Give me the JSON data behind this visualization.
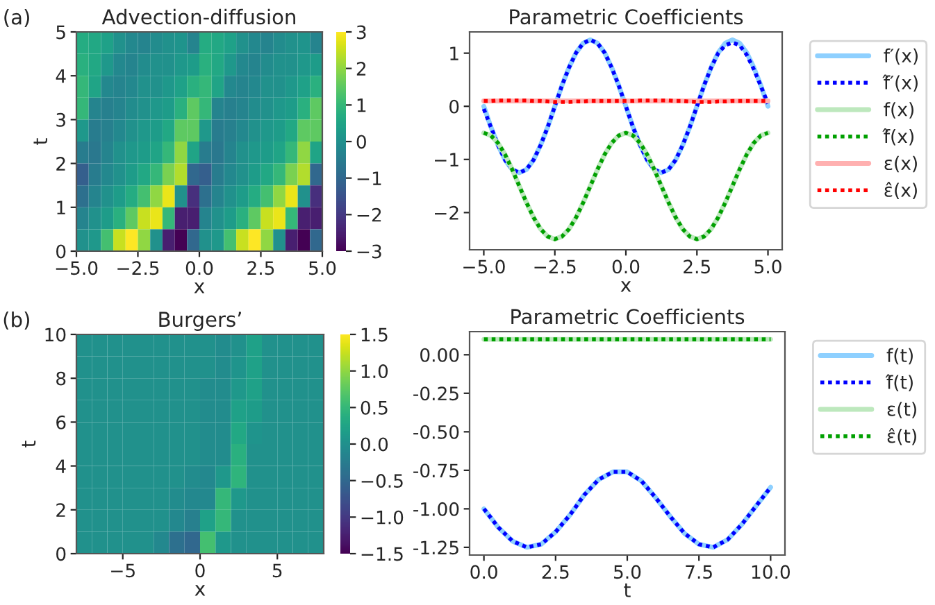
{
  "chart_data": [
    {
      "type": "heatmap",
      "title": "Advection-diffusion",
      "xlabel": "x",
      "ylabel": "t",
      "annotations": [
        "(a)"
      ],
      "xlim": [
        -5,
        5
      ],
      "ylim": [
        0,
        5
      ],
      "xticks": [
        {
          "value": -5,
          "label": "−5.0"
        },
        {
          "value": -2.5,
          "label": "−2.5"
        },
        {
          "value": 0,
          "label": "0.0"
        },
        {
          "value": 2.5,
          "label": "2.5"
        },
        {
          "value": 5,
          "label": "5.0"
        }
      ],
      "yticks": [
        0,
        1,
        2,
        3,
        4,
        5
      ],
      "clim": [
        -3,
        3
      ],
      "cticks": [
        {
          "value": -3,
          "label": "−3"
        },
        {
          "value": -2,
          "label": "−2"
        },
        {
          "value": -1,
          "label": "−1"
        },
        0,
        1,
        2,
        3
      ],
      "cells": [
        [
          0.7,
          0.6,
          0.4,
          0,
          -0.2,
          -0.3,
          -0.1,
          0,
          0.1,
          -0.3,
          0.7,
          0.6,
          0.4,
          0,
          -0.2,
          -0.3,
          -0.1,
          0,
          0.1,
          -0.3
        ],
        [
          0.8,
          0.6,
          0.2,
          -0.2,
          -0.3,
          -0.1,
          0,
          0,
          0.2,
          0.3,
          0.8,
          0.6,
          0.2,
          -0.2,
          -0.3,
          -0.1,
          0,
          0,
          0.2,
          0.3
        ],
        [
          1,
          0.5,
          -0.2,
          -0.3,
          -0.2,
          0,
          0,
          0.2,
          0.4,
          0.8,
          1,
          0.5,
          -0.2,
          -0.3,
          -0.2,
          0,
          0,
          0.2,
          0.4,
          0.8
        ],
        [
          1,
          -0.3,
          -0.4,
          -0.3,
          -0.1,
          0,
          0.2,
          0.3,
          0.8,
          1.5,
          1,
          -0.3,
          -0.4,
          -0.3,
          -0.1,
          0,
          0.2,
          0.3,
          0.8,
          1.5
        ],
        [
          0.2,
          -0.5,
          -0.4,
          -0.2,
          0,
          0.2,
          0.3,
          0.6,
          1.5,
          1.5,
          0.2,
          -0.5,
          -0.4,
          -0.2,
          0,
          0.2,
          0.3,
          0.6,
          1.5,
          1.5
        ],
        [
          -0.5,
          -0.6,
          -0.3,
          0,
          0.2,
          0.3,
          0.5,
          1,
          2,
          0.5,
          -0.5,
          -0.6,
          -0.3,
          0,
          0.2,
          0.3,
          0.5,
          1,
          2,
          0.5
        ],
        [
          -1.2,
          -0.5,
          -0.2,
          0,
          0.3,
          0.6,
          1,
          1.8,
          2.3,
          -1,
          -1.2,
          -0.5,
          -0.2,
          0,
          0.3,
          0.6,
          1,
          1.8,
          2.3,
          -1
        ],
        [
          -0.8,
          -0.3,
          0,
          0.3,
          0.7,
          1.2,
          2,
          2.8,
          0,
          -2.2,
          -0.8,
          -0.3,
          0,
          0.3,
          0.7,
          1.2,
          2,
          2.8,
          0,
          -2.2
        ],
        [
          -0.3,
          0,
          0.3,
          0.8,
          1.5,
          2.5,
          2.8,
          1,
          -2.5,
          -2.5,
          -0.3,
          0,
          0.3,
          0.8,
          1.5,
          2.5,
          2.8,
          1,
          -2.5,
          -2.5
        ],
        [
          0,
          0.2,
          1.2,
          2.5,
          3,
          2,
          0,
          -2.5,
          -3,
          -1,
          0,
          0.2,
          1.2,
          2.5,
          3,
          2,
          0,
          -2.5,
          -3,
          -1
        ]
      ]
    },
    {
      "type": "line",
      "title": "Parametric Coefficients",
      "xlabel": "x",
      "legend": "right",
      "grid": false,
      "xlim": [
        -5.5,
        5.5
      ],
      "ylim": [
        -2.7,
        1.4
      ],
      "xticks": [
        {
          "value": -5,
          "label": "−5.0"
        },
        {
          "value": -2.5,
          "label": "−2.5"
        },
        {
          "value": 0,
          "label": "0.0"
        },
        {
          "value": 2.5,
          "label": "2.5"
        },
        {
          "value": 5,
          "label": "5.0"
        }
      ],
      "yticks": [
        {
          "value": -2,
          "label": "−2"
        },
        {
          "value": -1,
          "label": "−1"
        },
        0,
        1
      ],
      "x": [
        -5,
        -4.75,
        -4.5,
        -4.25,
        -4,
        -3.75,
        -3.5,
        -3.25,
        -3,
        -2.75,
        -2.5,
        -2.25,
        -2,
        -1.75,
        -1.5,
        -1.25,
        -1,
        -0.75,
        -0.5,
        -0.25,
        0,
        0.25,
        0.5,
        0.75,
        1,
        1.25,
        1.5,
        1.75,
        2,
        2.25,
        2.5,
        2.75,
        3,
        3.25,
        3.5,
        3.75,
        4,
        4.25,
        4.5,
        4.75,
        5
      ],
      "series": [
        {
          "name": "f′(x)",
          "color": "#8ed0ff",
          "line_style": "solid",
          "values": [
            0,
            -0.39,
            -0.73,
            -1.01,
            -1.19,
            -1.25,
            -1.19,
            -1.01,
            -0.73,
            -0.39,
            0,
            0.39,
            0.73,
            1.01,
            1.19,
            1.25,
            1.19,
            1.01,
            0.73,
            0.39,
            0,
            -0.39,
            -0.73,
            -1.01,
            -1.19,
            -1.25,
            -1.19,
            -1.01,
            -0.73,
            -0.39,
            0,
            0.39,
            0.73,
            1.01,
            1.19,
            1.25,
            1.19,
            1.01,
            0.73,
            0.39,
            0
          ]
        },
        {
          "name": "f̂′(x)",
          "color": "#0000ff",
          "line_style": "dotted",
          "values": [
            -0.05,
            -0.39,
            -0.73,
            -1.01,
            -1.19,
            -1.25,
            -1.19,
            -1.01,
            -0.73,
            -0.39,
            0,
            0.39,
            0.73,
            1.01,
            1.19,
            1.25,
            1.19,
            1.01,
            0.73,
            0.39,
            0,
            -0.39,
            -0.73,
            -1.01,
            -1.19,
            -1.25,
            -1.19,
            -1.01,
            -0.73,
            -0.39,
            0,
            0.39,
            0.73,
            1.0,
            1.15,
            1.2,
            1.15,
            0.97,
            0.7,
            0.38,
            0.05
          ]
        },
        {
          "name": "f(x)",
          "color": "#bde8bd",
          "line_style": "solid",
          "values": [
            -0.5,
            -0.55,
            -0.69,
            -0.91,
            -1.19,
            -1.5,
            -1.81,
            -2.09,
            -2.31,
            -2.45,
            -2.5,
            -2.45,
            -2.31,
            -2.09,
            -1.81,
            -1.5,
            -1.19,
            -0.91,
            -0.69,
            -0.55,
            -0.5,
            -0.55,
            -0.69,
            -0.91,
            -1.19,
            -1.5,
            -1.81,
            -2.09,
            -2.31,
            -2.45,
            -2.5,
            -2.45,
            -2.31,
            -2.09,
            -1.81,
            -1.5,
            -1.19,
            -0.91,
            -0.69,
            -0.55,
            -0.5
          ]
        },
        {
          "name": "f̂(x)",
          "color": "#00a000",
          "line_style": "dotted",
          "values": [
            -0.5,
            -0.55,
            -0.69,
            -0.91,
            -1.19,
            -1.5,
            -1.81,
            -2.09,
            -2.31,
            -2.45,
            -2.5,
            -2.45,
            -2.31,
            -2.09,
            -1.81,
            -1.5,
            -1.19,
            -0.91,
            -0.69,
            -0.55,
            -0.5,
            -0.55,
            -0.69,
            -0.91,
            -1.19,
            -1.5,
            -1.81,
            -2.09,
            -2.31,
            -2.45,
            -2.5,
            -2.45,
            -2.31,
            -2.09,
            -1.81,
            -1.5,
            -1.19,
            -0.91,
            -0.69,
            -0.55,
            -0.5
          ]
        },
        {
          "name": "ε(x)",
          "color": "#ffb0b0",
          "line_style": "solid",
          "values": [
            0.1,
            0.1,
            0.1,
            0.1,
            0.1,
            0.1,
            0.1,
            0.1,
            0.1,
            0.1,
            0.1,
            0.1,
            0.1,
            0.1,
            0.1,
            0.1,
            0.1,
            0.1,
            0.1,
            0.1,
            0.1,
            0.1,
            0.1,
            0.1,
            0.1,
            0.1,
            0.1,
            0.1,
            0.1,
            0.1,
            0.1,
            0.1,
            0.1,
            0.1,
            0.1,
            0.1,
            0.1,
            0.1,
            0.1,
            0.1,
            0.1
          ]
        },
        {
          "name": "ε̂(x)",
          "color": "#ff0000",
          "line_style": "dotted",
          "values": [
            0.1,
            0.1,
            0.11,
            0.11,
            0.11,
            0.11,
            0.11,
            0.1,
            0.1,
            0.09,
            0.08,
            0.08,
            0.08,
            0.09,
            0.09,
            0.1,
            0.1,
            0.1,
            0.1,
            0.1,
            0.1,
            0.1,
            0.11,
            0.11,
            0.11,
            0.11,
            0.11,
            0.1,
            0.1,
            0.09,
            0.08,
            0.08,
            0.08,
            0.09,
            0.09,
            0.1,
            0.1,
            0.1,
            0.1,
            0.1,
            0.1
          ]
        }
      ]
    },
    {
      "type": "heatmap",
      "title": "Burgers’",
      "xlabel": "x",
      "ylabel": "t",
      "annotations": [
        "(b)"
      ],
      "xlim": [
        -8,
        8
      ],
      "ylim": [
        0,
        10
      ],
      "xticks": [
        {
          "value": -5,
          "label": "−5"
        },
        0,
        5
      ],
      "yticks": [
        0,
        2,
        4,
        6,
        8,
        10
      ],
      "clim": [
        -1.5,
        1.5
      ],
      "cticks": [
        {
          "value": -1.5,
          "label": "−1.5"
        },
        {
          "value": -1,
          "label": "−1.0"
        },
        {
          "value": -0.5,
          "label": "−0.5"
        },
        {
          "value": 0,
          "label": "0.0"
        },
        0.5,
        {
          "value": 1,
          "label": "1.0"
        },
        1.5
      ],
      "cells": [
        [
          0,
          0,
          0,
          0,
          0,
          0,
          0,
          0,
          0,
          -0.05,
          0,
          0.2,
          0,
          0,
          0,
          0
        ],
        [
          0,
          0,
          0,
          0,
          0,
          0,
          0,
          0,
          0,
          -0.05,
          0.05,
          0.2,
          0,
          0,
          0,
          0
        ],
        [
          0,
          0,
          0,
          0,
          0,
          0,
          0,
          0,
          -0.05,
          -0.05,
          0.1,
          0.2,
          0,
          0,
          0,
          0
        ],
        [
          0,
          0,
          0,
          0,
          0,
          0,
          0,
          0,
          -0.05,
          -0.05,
          0.2,
          0.15,
          0,
          0,
          0,
          0
        ],
        [
          0,
          0,
          0,
          0,
          0,
          0,
          0,
          0,
          -0.05,
          -0.05,
          0.3,
          0.05,
          0,
          0,
          0,
          0
        ],
        [
          0,
          0,
          0,
          0,
          0,
          0,
          0,
          0,
          -0.05,
          -0.05,
          0.4,
          0,
          0,
          0,
          0,
          0
        ],
        [
          0,
          0,
          0,
          0,
          0,
          0,
          0,
          -0.05,
          -0.1,
          0.1,
          0.45,
          0,
          0,
          0,
          0,
          0
        ],
        [
          0,
          0,
          0,
          0,
          0,
          0,
          -0.05,
          -0.1,
          -0.1,
          0.5,
          0.1,
          0,
          0,
          0,
          0,
          0
        ],
        [
          0,
          0,
          0,
          0,
          0,
          0,
          -0.1,
          -0.2,
          0.2,
          0.5,
          0,
          0,
          0,
          0,
          0,
          0
        ],
        [
          0,
          0,
          0,
          0,
          0,
          -0.1,
          -0.4,
          -0.5,
          0.6,
          0.1,
          0,
          0,
          0,
          0,
          0,
          0
        ]
      ]
    },
    {
      "type": "line",
      "title": "Parametric Coefficients",
      "xlabel": "t",
      "legend": "right",
      "grid": false,
      "xlim": [
        -0.5,
        10.5
      ],
      "ylim": [
        -1.3,
        0.15
      ],
      "xticks": [
        {
          "value": 0,
          "label": "0.0"
        },
        2.5,
        {
          "value": 5,
          "label": "5.0"
        },
        7.5,
        {
          "value": 10,
          "label": "10.0"
        }
      ],
      "yticks": [
        {
          "value": -1.25,
          "label": "-1.25"
        },
        {
          "value": -1,
          "label": "-1.00"
        },
        {
          "value": -0.75,
          "label": "-0.75"
        },
        {
          "value": -0.5,
          "label": "-0.50"
        },
        {
          "value": -0.25,
          "label": "-0.25"
        },
        {
          "value": 0,
          "label": "0.00"
        }
      ],
      "x": [
        0,
        0.5,
        1,
        1.5,
        2,
        2.5,
        3,
        3.5,
        4,
        4.5,
        5,
        5.5,
        6,
        6.5,
        7,
        7.5,
        8,
        8.5,
        9,
        9.5,
        10
      ],
      "series": [
        {
          "name": "f(t)",
          "color": "#8ed0ff",
          "line_style": "solid",
          "values": [
            -1,
            -1.12,
            -1.21,
            -1.25,
            -1.23,
            -1.15,
            -1.04,
            -0.91,
            -0.81,
            -0.76,
            -0.76,
            -0.82,
            -0.93,
            -1.05,
            -1.16,
            -1.23,
            -1.25,
            -1.2,
            -1.1,
            -0.98,
            -0.86
          ]
        },
        {
          "name": "f̂(t)",
          "color": "#0000ff",
          "line_style": "dotted",
          "values": [
            -1,
            -1.12,
            -1.21,
            -1.25,
            -1.23,
            -1.15,
            -1.04,
            -0.91,
            -0.81,
            -0.76,
            -0.76,
            -0.82,
            -0.93,
            -1.05,
            -1.16,
            -1.23,
            -1.25,
            -1.2,
            -1.1,
            -0.98,
            -0.86
          ]
        },
        {
          "name": "ε(t)",
          "color": "#bde8bd",
          "line_style": "solid",
          "values": [
            0.1,
            0.1,
            0.1,
            0.1,
            0.1,
            0.1,
            0.1,
            0.1,
            0.1,
            0.1,
            0.1,
            0.1,
            0.1,
            0.1,
            0.1,
            0.1,
            0.1,
            0.1,
            0.1,
            0.1,
            0.1
          ]
        },
        {
          "name": "ε̂(t)",
          "color": "#00a000",
          "line_style": "dotted",
          "values": [
            0.1,
            0.1,
            0.1,
            0.1,
            0.1,
            0.1,
            0.1,
            0.1,
            0.1,
            0.1,
            0.1,
            0.1,
            0.1,
            0.1,
            0.1,
            0.1,
            0.1,
            0.1,
            0.1,
            0.1,
            0.1
          ]
        }
      ]
    }
  ]
}
